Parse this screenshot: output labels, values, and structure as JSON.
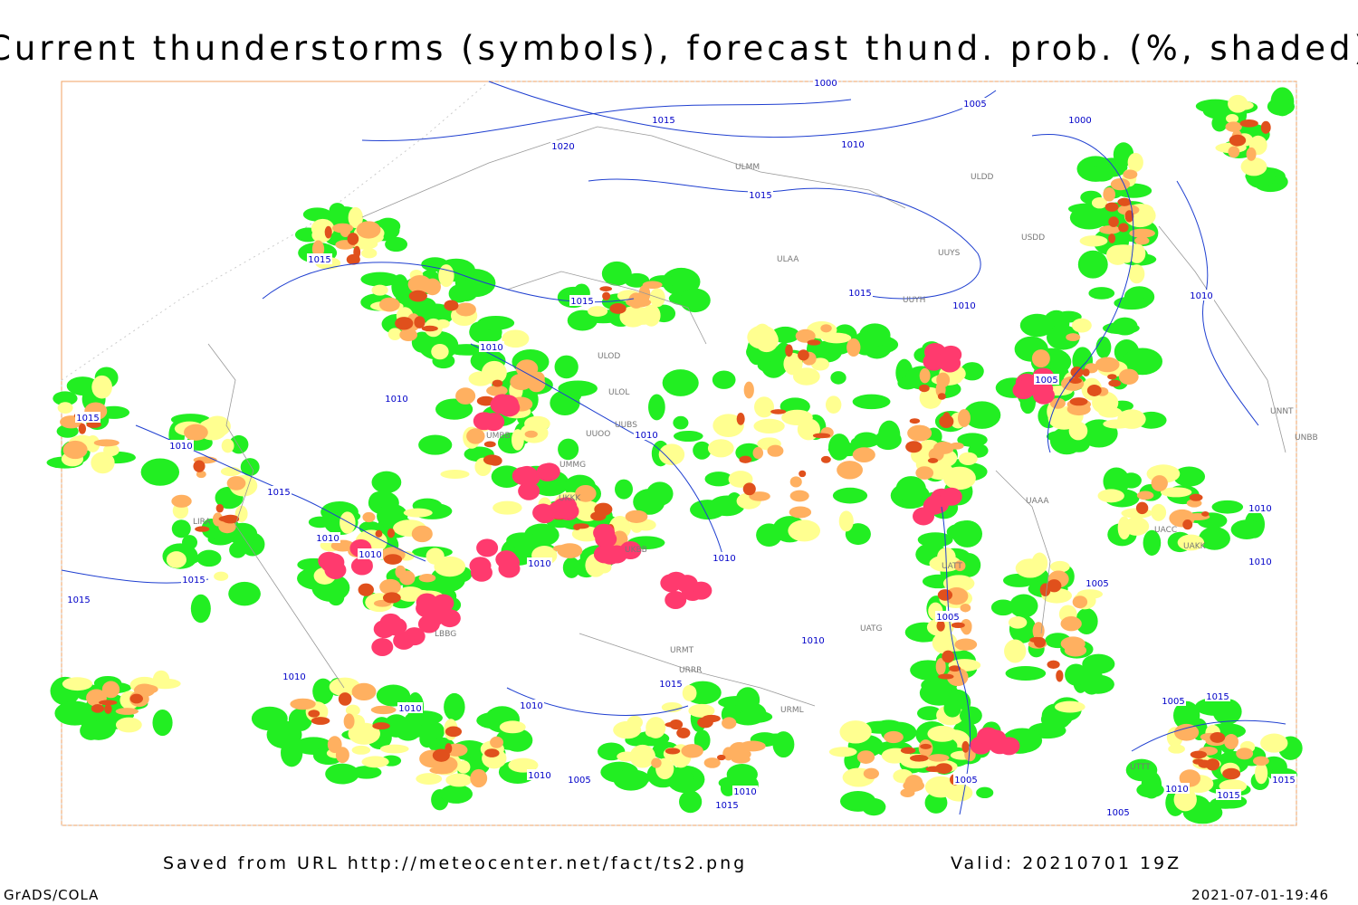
{
  "header": {
    "title": "Current thunderstorms (symbols), forecast thund. prob. (%, shaded)"
  },
  "footer": {
    "source": "Saved from URL http://meteocenter.net/fact/ts2.png",
    "valid": "Valid: 20210701 19Z",
    "credit": "GrADS/COLA",
    "timestamp": "2021-07-01-19:46"
  },
  "isobar_labels": [
    "1000",
    "1015",
    "1020",
    "1010",
    "1005",
    "1000",
    "1015",
    "1015",
    "1015",
    "1010",
    "1015",
    "1010",
    "1010",
    "1005",
    "1010",
    "1015",
    "1010",
    "1010",
    "1015",
    "1010",
    "1010",
    "1010",
    "1010",
    "1010",
    "1005",
    "1010",
    "1015",
    "1015",
    "1005",
    "1010",
    "1015",
    "1010",
    "1010",
    "1010",
    "1005",
    "1010",
    "1005",
    "1010",
    "1015",
    "1005",
    "1010",
    "1015",
    "1015",
    "1005",
    "1015"
  ],
  "station_labels": [
    "ULMM",
    "ULDD",
    "USDD",
    "ULAA",
    "UUYS",
    "UUYH",
    "ULOL",
    "ULOD",
    "UMMG",
    "UMBB",
    "UUOO",
    "UUBS",
    "UKKK",
    "UKBB",
    "LIRA",
    "LBBG",
    "URMT",
    "URRR",
    "UATT",
    "UACC",
    "UAAA",
    "UNNT",
    "UNBB",
    "UAKK",
    "UTTT",
    "URML",
    "UATG"
  ]
}
